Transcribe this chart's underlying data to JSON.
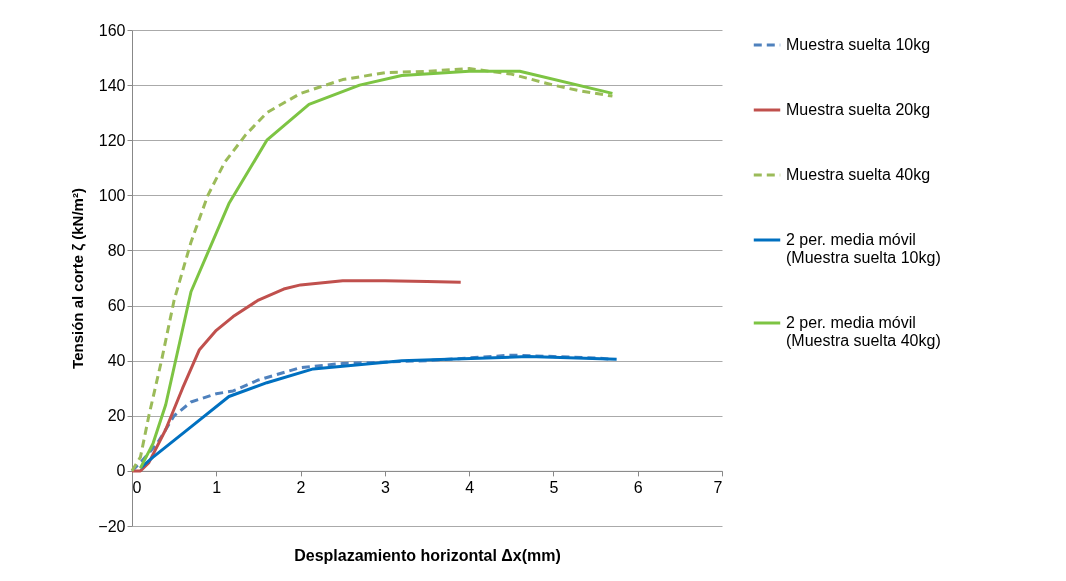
{
  "chart_data": {
    "type": "line",
    "xlabel": "Desplazamiento horizontal Δx(mm)",
    "ylabel": "Tensión al corte ζ (kN/m²)",
    "xlim": [
      0,
      7
    ],
    "xticks": [
      0,
      1,
      2,
      3,
      4,
      5,
      6,
      7
    ],
    "ylim": [
      -20,
      160
    ],
    "yticks": [
      -20,
      0,
      20,
      40,
      60,
      80,
      100,
      120,
      140,
      160
    ],
    "grid": "y",
    "legend": "right",
    "marker": "none",
    "series": [
      {
        "name": "Muestra suelta 10kg",
        "color": "#4f81bd",
        "line_style": "dashed",
        "x": [
          0,
          0.1,
          0.3,
          0.5,
          0.7,
          1,
          1.2,
          1.5,
          2,
          2.5,
          3,
          3.5,
          4,
          4.5,
          5,
          5.5,
          5.7
        ],
        "values": [
          0,
          3,
          10,
          20,
          25,
          28,
          29,
          33,
          37.5,
          39,
          39.5,
          40,
          41,
          42,
          41.5,
          41,
          40.5
        ]
      },
      {
        "name": "Muestra suelta 20kg",
        "color": "#c0504d",
        "line_style": "solid",
        "x": [
          0,
          0.1,
          0.2,
          0.4,
          0.6,
          0.8,
          1,
          1.2,
          1.5,
          1.8,
          2,
          2.5,
          3,
          3.5,
          3.9
        ],
        "values": [
          0,
          0,
          3,
          15,
          30,
          44,
          51,
          56,
          62,
          66,
          67.5,
          69,
          69,
          68.7,
          68.5
        ]
      },
      {
        "name": "Muestra suelta 40kg",
        "color": "#9bbb59",
        "line_style": "dashed",
        "x": [
          0,
          0.1,
          0.2,
          0.35,
          0.5,
          0.7,
          0.9,
          1.1,
          1.35,
          1.6,
          2,
          2.5,
          3,
          3.5,
          4,
          4.5,
          5,
          5.3,
          5.7
        ],
        "values": [
          0,
          5,
          20,
          40,
          62,
          83,
          100,
          112,
          122,
          130,
          137,
          142,
          144.5,
          145,
          146,
          144,
          140,
          138,
          136
        ]
      },
      {
        "name": "2 per. media móvil (Muestra suelta 10kg)",
        "color": "#0070c0",
        "line_style": "solid",
        "x": [
          0.1,
          0.25,
          0.7,
          1.15,
          1.6,
          2.15,
          3.2,
          4.7,
          5.75
        ],
        "values": [
          1,
          5,
          16,
          27,
          32,
          37,
          40,
          41.5,
          40.5
        ]
      },
      {
        "name": "2 per. media móvil (Muestra suelta 40kg)",
        "color": "#7dc443",
        "line_style": "solid",
        "x": [
          0.1,
          0.25,
          0.4,
          0.7,
          1.15,
          1.6,
          2.1,
          2.7,
          3.2,
          4,
          4.6,
          5.7
        ],
        "values": [
          1,
          10,
          24,
          65,
          97,
          120,
          133,
          140,
          143.5,
          145,
          145,
          137
        ]
      }
    ]
  }
}
